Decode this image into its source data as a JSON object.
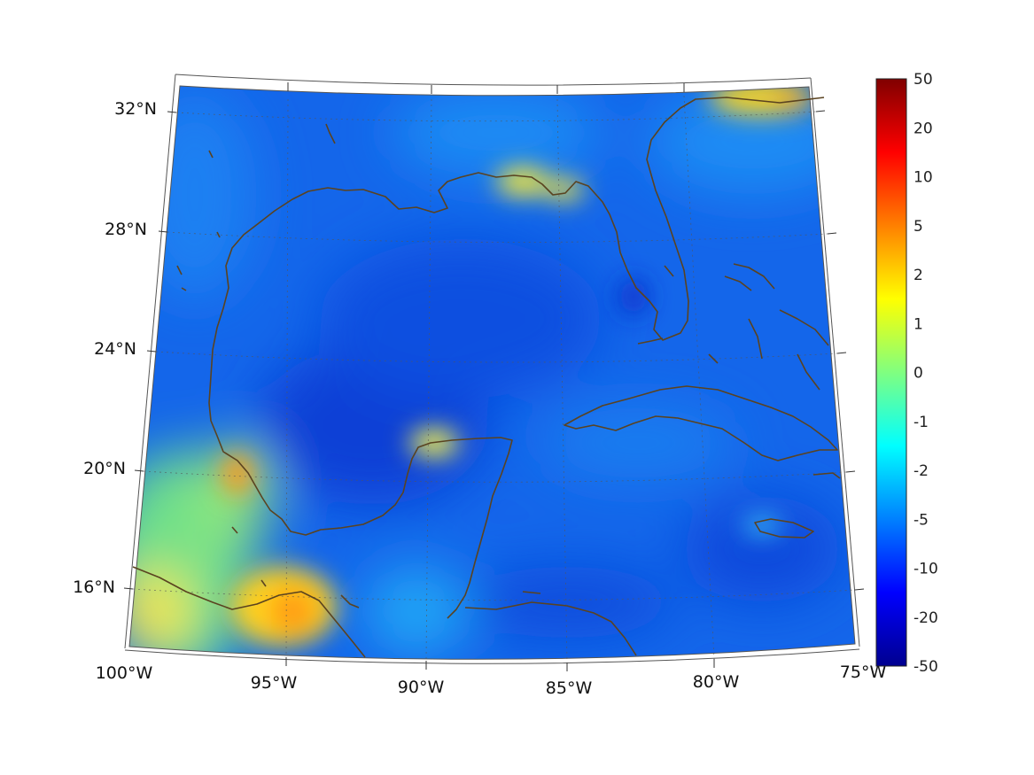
{
  "map": {
    "lon_labels": [
      "100°W",
      "95°W",
      "90°W",
      "85°W",
      "80°W",
      "75°W"
    ],
    "lat_labels": [
      "32°N",
      "28°N",
      "24°N",
      "20°N",
      "16°N"
    ],
    "coastline_color": "#5a4320",
    "graticule_color": "#666666",
    "background_field_color": "#1466ea"
  },
  "colorbar": {
    "labels": [
      "50",
      "20",
      "10",
      "5",
      "2",
      "1",
      "0",
      "-1",
      "-2",
      "-5",
      "-10",
      "-20",
      "-50"
    ],
    "colormap": "jet",
    "stops": [
      "#00008f",
      "#0000ff",
      "#0080ff",
      "#00ffff",
      "#80ff80",
      "#ffff00",
      "#ff8000",
      "#ff0000",
      "#800000"
    ]
  }
}
